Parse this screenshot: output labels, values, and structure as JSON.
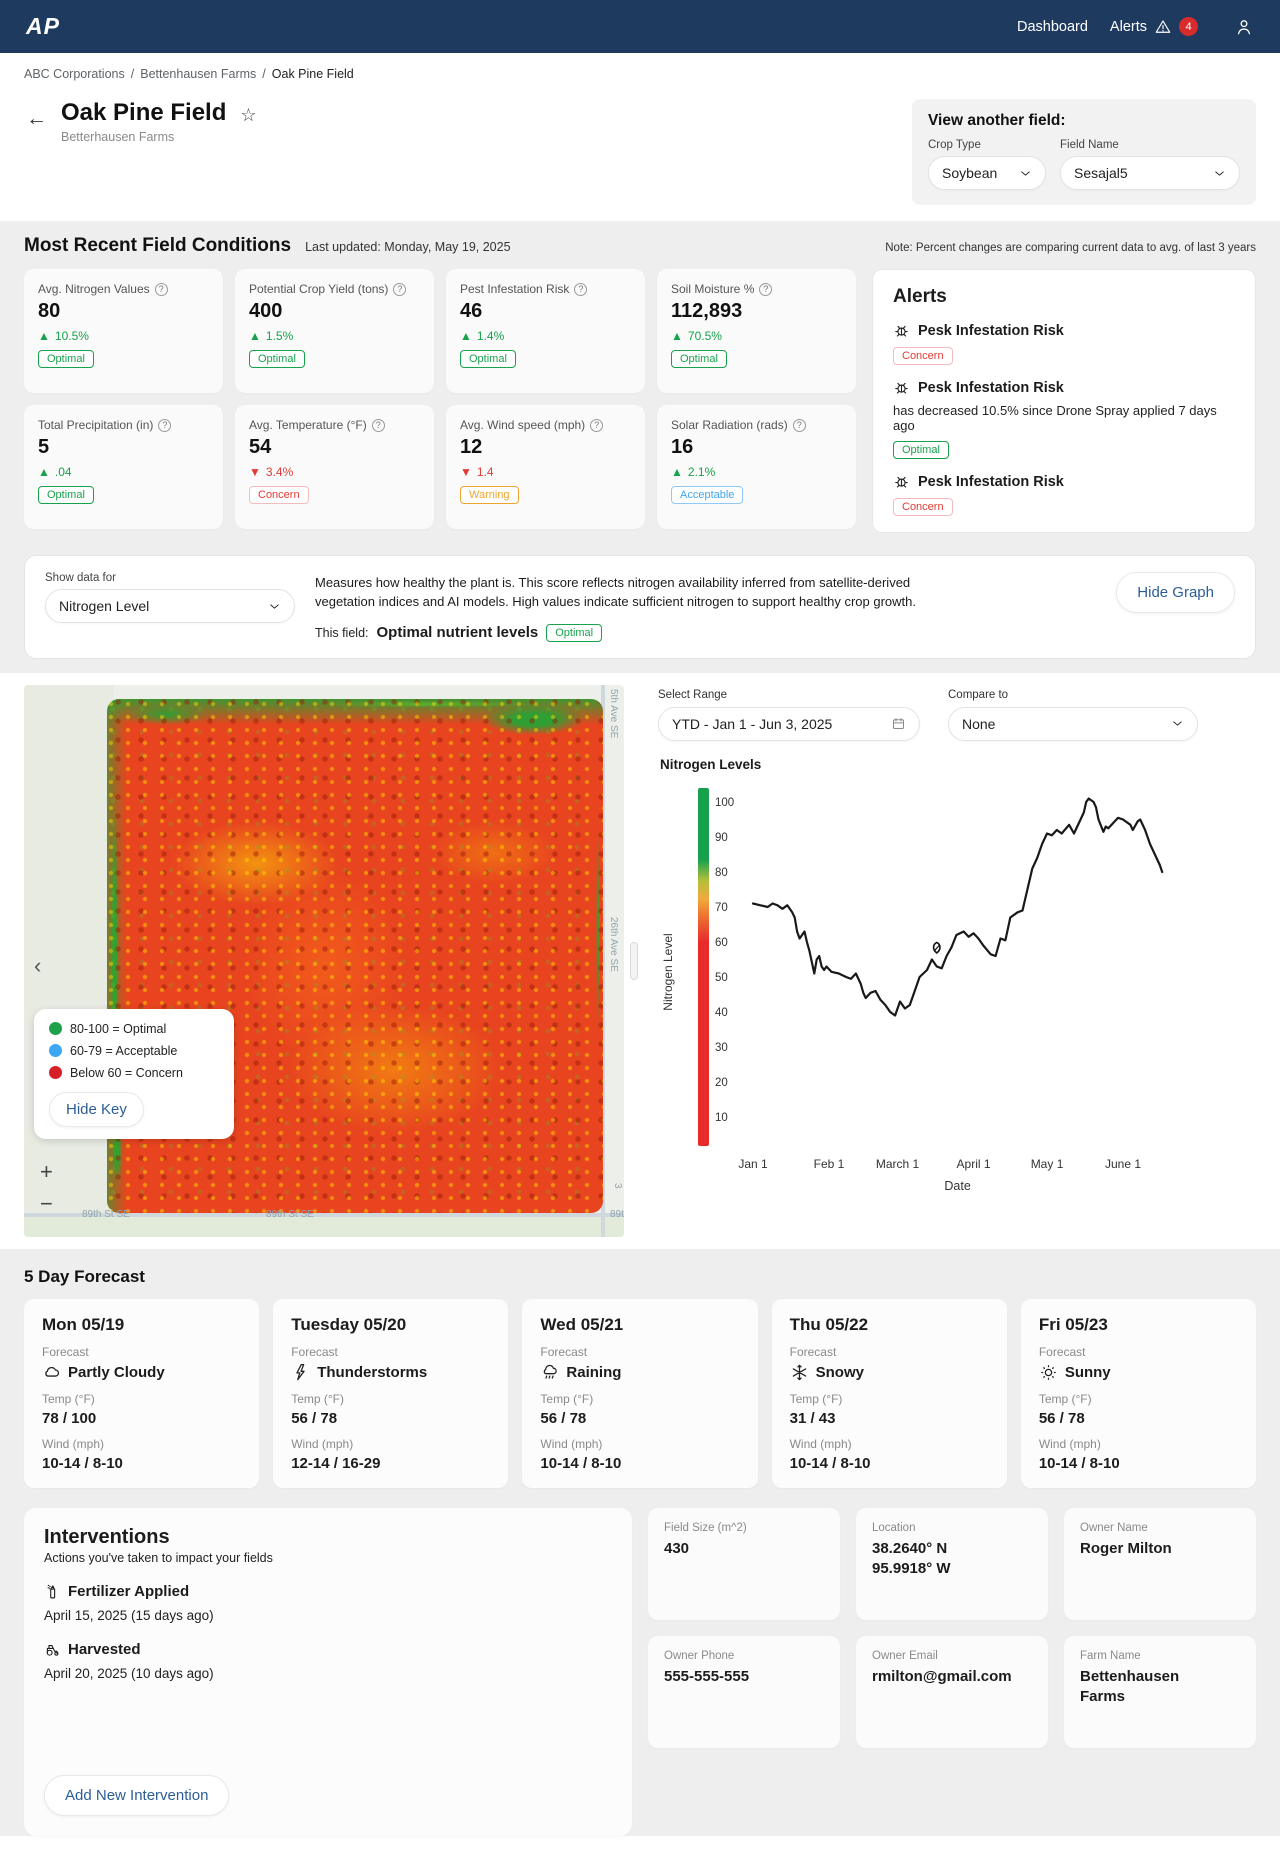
{
  "colors": {
    "navbar": "#1e3a5f",
    "accent": "#2b5e97",
    "green": "#17a24b",
    "red": "#e23b36",
    "orange": "#eda531",
    "blue": "#41a6f0"
  },
  "navbar": {
    "logo": "AP",
    "dashboard": "Dashboard",
    "alerts": "Alerts",
    "alerts_count": "4"
  },
  "breadcrumb": {
    "items": [
      "ABC Corporations",
      "Bettenhausen Farms",
      "Oak Pine Field"
    ],
    "sep": "/"
  },
  "header": {
    "back": "←",
    "star": "☆",
    "title": "Oak Pine Field",
    "subtitle": "Betterhausen Farms",
    "view_another": {
      "title": "View another field:",
      "crop_type_label": "Crop Type",
      "crop_type_value": "Soybean",
      "field_name_label": "Field Name",
      "field_name_value": "Sesajal5"
    }
  },
  "conditions": {
    "title": "Most Recent Field Conditions",
    "last_updated": "Last updated: Monday, May 19, 2025",
    "note": "Note: Percent changes are comparing current data to avg. of last 3 years",
    "metrics": [
      {
        "label": "Avg. Nitrogen Values",
        "value": "80",
        "arrow": "▲",
        "delta": "10.5%",
        "trend": "up",
        "status": "Optimal"
      },
      {
        "label": "Potential Crop Yield (tons)",
        "value": "400",
        "arrow": "▲",
        "delta": "1.5%",
        "trend": "up",
        "status": "Optimal"
      },
      {
        "label": "Pest Infestation Risk",
        "value": "46",
        "arrow": "▲",
        "delta": "1.4%",
        "trend": "up",
        "status": "Optimal"
      },
      {
        "label": "Soil Moisture %",
        "value": "112,893",
        "arrow": "▲",
        "delta": "70.5%",
        "trend": "up",
        "status": "Optimal"
      },
      {
        "label": "Total Precipitation (in)",
        "value": "5",
        "arrow": "▲",
        "delta": ".04",
        "trend": "up",
        "status": "Optimal"
      },
      {
        "label": "Avg. Temperature (°F)",
        "value": "54",
        "arrow": "▼",
        "delta": "3.4%",
        "trend": "down",
        "status": "Concern"
      },
      {
        "label": "Avg. Wind speed (mph)",
        "value": "12",
        "arrow": "▼",
        "delta": "1.4",
        "trend": "down",
        "status": "Warning"
      },
      {
        "label": "Solar Radiation (rads)",
        "value": "16",
        "arrow": "▲",
        "delta": "2.1%",
        "trend": "up",
        "status": "Acceptable"
      }
    ]
  },
  "alerts_panel": {
    "title": "Alerts",
    "items": [
      {
        "title": "Pesk Infestation Risk",
        "status": "Concern"
      },
      {
        "title": "Pesk Infestation Risk",
        "description": "has decreased 10.5% since Drone Spray applied 7 days ago",
        "status": "Optimal"
      },
      {
        "title": "Pesk Infestation Risk",
        "status": "Concern"
      }
    ]
  },
  "data_selector": {
    "label": "Show data for",
    "value": "Nitrogen Level",
    "description": "Measures how healthy the plant is. This score reflects nitrogen availability inferred from satellite-derived vegetation indices and AI models. High values indicate sufficient nitrogen to support healthy crop growth.",
    "this_field_label": "This field:",
    "this_field_value": "Optimal nutrient levels",
    "this_field_status": "Optimal",
    "hide_graph_label": "Hide Graph"
  },
  "map": {
    "legend": {
      "items": [
        {
          "color": "#1fa14b",
          "label": "80-100 = Optimal"
        },
        {
          "color": "#3ea7f5",
          "label": "60-79 = Acceptable"
        },
        {
          "color": "#d71f27",
          "label": "Below 60 = Concern"
        }
      ],
      "hide_key_label": "Hide Key"
    },
    "zoom_in": "+",
    "zoom_out": "−",
    "collapse": "‹",
    "streets": {
      "ave_top": "5th Ave SE",
      "ave_mid": "26th Ave SE",
      "st_left": "89th St SE",
      "st_center": "89th St SE",
      "st_right": "89t",
      "route": "3"
    }
  },
  "chart_controls": {
    "range_label": "Select Range",
    "range_value": "YTD - Jan 1 - Jun 3, 2025",
    "compare_label": "Compare to",
    "compare_value": "None"
  },
  "chart_data": {
    "type": "line",
    "title": "Nitrogen Levels",
    "xlabel": "Date",
    "ylabel": "Nitrogen Level",
    "ylim": [
      10,
      100
    ],
    "grid": false,
    "yticks": [
      100,
      90,
      80,
      70,
      60,
      50,
      40,
      30,
      20,
      10
    ],
    "xticks": [
      {
        "label": "Jan 1",
        "day": 0
      },
      {
        "label": "Feb 1",
        "day": 31
      },
      {
        "label": "March 1",
        "day": 59
      },
      {
        "label": "April 1",
        "day": 90
      },
      {
        "label": "May 1",
        "day": 120
      },
      {
        "label": "June 1",
        "day": 151
      }
    ],
    "gradient_stops": [
      [
        "0%",
        "#18a14d"
      ],
      [
        "20%",
        "#18a14d"
      ],
      [
        "26%",
        "#b5bf3b"
      ],
      [
        "31%",
        "#f0a93c"
      ],
      [
        "36%",
        "#ed7030"
      ],
      [
        "43%",
        "#e82a2b"
      ],
      [
        "100%",
        "#e82a2b"
      ]
    ],
    "marker": {
      "day": 75,
      "value": 58,
      "icon": "leaf"
    },
    "points": [
      [
        0,
        71
      ],
      [
        3,
        70.5
      ],
      [
        6,
        70
      ],
      [
        8,
        71
      ],
      [
        10,
        70.5
      ],
      [
        12,
        69.5
      ],
      [
        14,
        70.5
      ],
      [
        16,
        68.5
      ],
      [
        17,
        67
      ],
      [
        18,
        63
      ],
      [
        19,
        61
      ],
      [
        21,
        63
      ],
      [
        22,
        60
      ],
      [
        23,
        57.5
      ],
      [
        25,
        51
      ],
      [
        26,
        55
      ],
      [
        27,
        56
      ],
      [
        28,
        53
      ],
      [
        29,
        52
      ],
      [
        30,
        53
      ],
      [
        32,
        51.5
      ],
      [
        35,
        51
      ],
      [
        38,
        50
      ],
      [
        40,
        49.5
      ],
      [
        42,
        51
      ],
      [
        44,
        48
      ],
      [
        45,
        45.5
      ],
      [
        46,
        44
      ],
      [
        48,
        45.5
      ],
      [
        50,
        46
      ],
      [
        52,
        43.5
      ],
      [
        54,
        42
      ],
      [
        56,
        40
      ],
      [
        58,
        39
      ],
      [
        60,
        43
      ],
      [
        62,
        41
      ],
      [
        64,
        42
      ],
      [
        66,
        46
      ],
      [
        68,
        50
      ],
      [
        71,
        52
      ],
      [
        73,
        55
      ],
      [
        75,
        53
      ],
      [
        77,
        52.5
      ],
      [
        79,
        56
      ],
      [
        81,
        58.5
      ],
      [
        83,
        62
      ],
      [
        86,
        63
      ],
      [
        88,
        61.5
      ],
      [
        90,
        62.5
      ],
      [
        92,
        61
      ],
      [
        94,
        59
      ],
      [
        97,
        56.5
      ],
      [
        99,
        56
      ],
      [
        101,
        61
      ],
      [
        103,
        60.5
      ],
      [
        105,
        67
      ],
      [
        108,
        68.5
      ],
      [
        110,
        69
      ],
      [
        112,
        75
      ],
      [
        114,
        81
      ],
      [
        116,
        84
      ],
      [
        118,
        88
      ],
      [
        120,
        91
      ],
      [
        122,
        90.5
      ],
      [
        124,
        92
      ],
      [
        126,
        91
      ],
      [
        129,
        93.5
      ],
      [
        131,
        91
      ],
      [
        133,
        94
      ],
      [
        135,
        97
      ],
      [
        136,
        100
      ],
      [
        137,
        101
      ],
      [
        139,
        100
      ],
      [
        140,
        98.5
      ],
      [
        141,
        95
      ],
      [
        143,
        91.5
      ],
      [
        144,
        93
      ],
      [
        145,
        92.5
      ],
      [
        147,
        94
      ],
      [
        149,
        95.5
      ],
      [
        151,
        95
      ],
      [
        154,
        93.5
      ],
      [
        155,
        92
      ],
      [
        157,
        94.5
      ],
      [
        158,
        95
      ],
      [
        160,
        92
      ],
      [
        162,
        88
      ],
      [
        164,
        85
      ],
      [
        166,
        82
      ],
      [
        167,
        80
      ]
    ]
  },
  "forecast": {
    "title": "5 Day Forecast",
    "forecast_label": "Forecast",
    "temp_label": "Temp (°F)",
    "wind_label": "Wind (mph)",
    "days": [
      {
        "day": "Mon 05/19",
        "condition": "Partly Cloudy",
        "icon": "cloud",
        "temp": "78 / 100",
        "wind": "10-14 / 8-10"
      },
      {
        "day": "Tuesday 05/20",
        "condition": "Thunderstorms",
        "icon": "lightning",
        "temp": "56 / 78",
        "wind": "12-14 / 16-29"
      },
      {
        "day": "Wed 05/21",
        "condition": "Raining",
        "icon": "rain",
        "temp": "56 / 78",
        "wind": "10-14 / 8-10"
      },
      {
        "day": "Thu 05/22",
        "condition": "Snowy",
        "icon": "snowflake",
        "temp": "31 / 43",
        "wind": "10-14 / 8-10"
      },
      {
        "day": "Fri 05/23",
        "condition": "Sunny",
        "icon": "sun",
        "temp": "56 / 78",
        "wind": "10-14 / 8-10"
      }
    ]
  },
  "interventions": {
    "title": "Interventions",
    "subtitle": "Actions you've taken to impact your fields",
    "items": [
      {
        "icon": "spray-can",
        "label": "Fertilizer Applied",
        "date": "April 15, 2025 (15 days ago)"
      },
      {
        "icon": "tractor",
        "label": "Harvested",
        "date": "April 20, 2025 (10 days ago)"
      }
    ],
    "add_label": "Add New Intervention"
  },
  "info_cards": [
    {
      "label": "Field Size (m^2)",
      "value": "430"
    },
    {
      "label": "Location",
      "value": "38.2640° N",
      "value2": "95.9918° W"
    },
    {
      "label": "Owner Name",
      "value": "Roger Milton"
    },
    {
      "label": "Owner Phone",
      "value": "555-555-555"
    },
    {
      "label": "Owner Email",
      "value": "rmilton@gmail.com"
    },
    {
      "label": "Farm Name",
      "value": "Bettenhausen Farms"
    }
  ]
}
